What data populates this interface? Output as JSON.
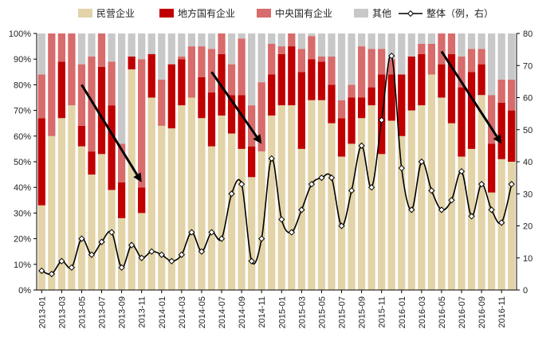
{
  "chart_data": {
    "type": "bar",
    "stacked": true,
    "categories": [
      "2013-01",
      "2013-02",
      "2013-03",
      "2013-04",
      "2013-05",
      "2013-06",
      "2013-07",
      "2013-08",
      "2013-09",
      "2013-10",
      "2013-11",
      "2013-12",
      "2014-01",
      "2014-02",
      "2014-03",
      "2014-04",
      "2014-05",
      "2014-06",
      "2014-07",
      "2014-08",
      "2014-09",
      "2014-10",
      "2014-11",
      "2014-12",
      "2015-01",
      "2015-02",
      "2015-03",
      "2015-04",
      "2015-05",
      "2015-06",
      "2015-07",
      "2015-08",
      "2015-09",
      "2015-10",
      "2015-11",
      "2015-12",
      "2016-01",
      "2016-02",
      "2016-03",
      "2016-04",
      "2016-05",
      "2016-06",
      "2016-07",
      "2016-08",
      "2016-09",
      "2016-10",
      "2016-11",
      "2016-12"
    ],
    "xtick_labels": [
      "2013-01",
      "2013-03",
      "2013-05",
      "2013-07",
      "2013-09",
      "2013-11",
      "2014-01",
      "2014-03",
      "2014-05",
      "2014-07",
      "2014-09",
      "2014-11",
      "2015-01",
      "2015-03",
      "2015-05",
      "2015-07",
      "2015-09",
      "2015-11",
      "2016-01",
      "2016-03",
      "2016-05",
      "2016-07",
      "2016-09",
      "2016-11"
    ],
    "series": [
      {
        "name": "民营企业",
        "color": "#e2d3a8",
        "values": [
          33,
          60,
          67,
          72,
          56,
          45,
          53,
          39,
          28,
          86,
          30,
          75,
          64,
          63,
          72,
          75,
          67,
          56,
          68,
          61,
          55,
          44,
          54,
          68,
          72,
          72,
          55,
          74,
          74,
          65,
          52,
          57,
          67,
          72,
          53,
          66,
          60,
          70,
          72,
          84,
          75,
          65,
          52,
          55,
          76,
          38,
          51,
          50
        ]
      },
      {
        "name": "地方国有企业",
        "color": "#c00000",
        "values": [
          34,
          0,
          22,
          0,
          8,
          9,
          34,
          33,
          14,
          5,
          10,
          17,
          0,
          25,
          18,
          0,
          16,
          21,
          24,
          15,
          21,
          12,
          0,
          16,
          20,
          23,
          30,
          16,
          15,
          15,
          15,
          18,
          8,
          7,
          31,
          18,
          24,
          21,
          20,
          0,
          13,
          27,
          27,
          30,
          12,
          19,
          22,
          20
        ]
      },
      {
        "name": "中央国有企业",
        "color": "#d86b6b",
        "values": [
          17,
          40,
          11,
          28,
          24,
          37,
          13,
          17,
          15,
          0,
          50,
          0,
          18,
          0,
          1,
          20,
          12,
          17,
          8,
          12,
          22,
          16,
          27,
          12,
          3,
          5,
          9,
          9,
          2,
          11,
          7,
          5,
          20,
          15,
          10,
          6,
          0,
          0,
          4,
          12,
          12,
          8,
          12,
          9,
          6,
          19,
          9,
          12
        ]
      },
      {
        "name": "其他",
        "color": "#c8c8c8",
        "values": [
          16,
          0,
          0,
          0,
          12,
          9,
          0,
          11,
          43,
          9,
          10,
          8,
          18,
          12,
          9,
          5,
          5,
          6,
          0,
          12,
          2,
          28,
          19,
          4,
          5,
          0,
          6,
          1,
          9,
          9,
          26,
          20,
          5,
          6,
          6,
          10,
          16,
          9,
          4,
          4,
          0,
          0,
          9,
          6,
          6,
          24,
          18,
          18
        ]
      }
    ],
    "line": {
      "name": "整体（例，右）",
      "color": "#000000",
      "values": [
        6,
        5,
        9,
        7,
        16,
        11,
        15,
        18,
        7,
        14,
        10,
        12,
        11,
        9,
        11,
        18,
        12,
        18,
        16,
        30,
        33,
        9,
        16,
        41,
        22,
        18,
        25,
        33,
        35,
        35,
        20,
        31,
        45,
        32,
        53,
        73,
        38,
        25,
        40,
        31,
        25,
        28,
        37,
        23,
        33,
        25,
        21,
        33
      ]
    },
    "legend": [
      "民营企业",
      "地方国有企业",
      "中央国有企业",
      "其他",
      "整体（例，右）"
    ],
    "y_left": {
      "min": 0,
      "max": 100,
      "step": 10,
      "ticks": [
        "0%",
        "10%",
        "20%",
        "30%",
        "40%",
        "50%",
        "60%",
        "70%",
        "80%",
        "90%",
        "100%"
      ]
    },
    "y_right": {
      "min": 0,
      "max": 80,
      "step": 10,
      "ticks": [
        "0",
        "10",
        "20",
        "30",
        "40",
        "50",
        "60",
        "70",
        "80"
      ]
    },
    "arrows": [
      {
        "from": {
          "x": "2013-05",
          "y_left": 80
        },
        "to": {
          "x": "2013-11",
          "y_left": 42
        }
      },
      {
        "from": {
          "x": "2014-06",
          "y_left": 85
        },
        "to": {
          "x": "2014-11",
          "y_left": 57
        }
      },
      {
        "from": {
          "x": "2016-05",
          "y_left": 93
        },
        "to": {
          "x": "2016-11",
          "y_left": 57
        }
      }
    ]
  }
}
